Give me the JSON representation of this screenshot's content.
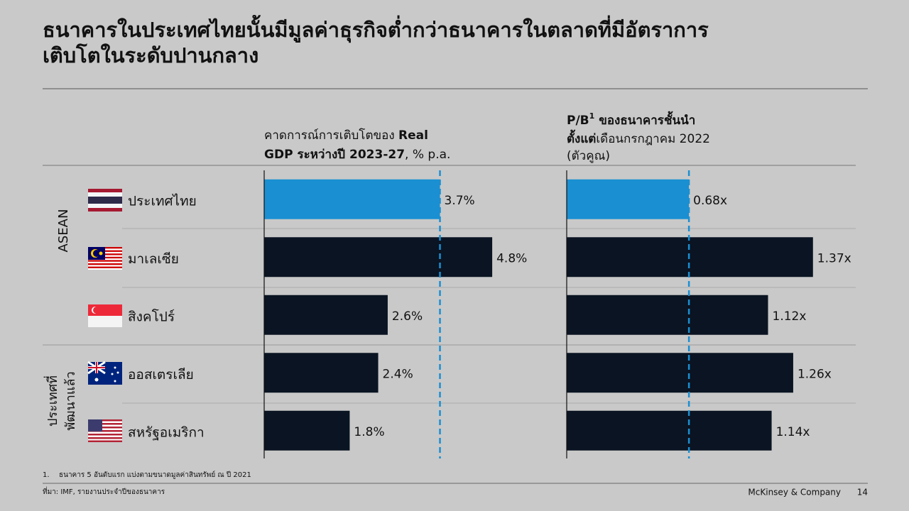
{
  "title": [
    "ธนาคารในประเทศไทยนั้นมีมูลค่าธุรกิจต่ำกว่าธนาคารในตลาดที่มีอัตราการ",
    "เติบโตในระดับปานกลาง"
  ],
  "groups": [
    [
      "ASEAN"
    ],
    [
      "ประเทศที่",
      "พัฒนาแล้ว"
    ]
  ],
  "chart_data": [
    {
      "type": "bar",
      "orientation": "horizontal",
      "title": [
        "คาดการณ์การเติบโตของ ",
        "Real",
        "GDP ระหว่างปี 2023-27",
        ", % p.a."
      ],
      "categories": [
        "ประเทศไทย",
        "มาเลเซีย",
        "สิงคโปร์",
        "ออสเตรเลีย",
        "สหรัฐอเมริกา"
      ],
      "values": [
        3.7,
        4.8,
        2.6,
        2.4,
        1.8
      ],
      "value_labels": [
        "3.7%",
        "4.8%",
        "2.6%",
        "2.4%",
        "1.8%"
      ],
      "colors": [
        "#1a8fd2",
        "#0a1422",
        "#0a1422",
        "#0a1422",
        "#0a1422"
      ],
      "xlim": [
        0,
        5.8
      ],
      "reference_line": true,
      "reference_color": "#1a8fd2"
    },
    {
      "type": "bar",
      "orientation": "horizontal",
      "title": [
        "P/B",
        "1",
        " ของธนาคารชั้นนำ",
        "ตั้งแต่",
        "เดือนกรกฎาคม 2022"
      ],
      "subtitle": "(ตัวคูณ)",
      "values": [
        0.68,
        1.37,
        1.12,
        1.26,
        1.14
      ],
      "value_labels": [
        "0.68x",
        "1.37x",
        "1.12x",
        "1.26x",
        "1.14x"
      ],
      "colors": [
        "#1a8fd2",
        "#0a1422",
        "#0a1422",
        "#0a1422",
        "#0a1422"
      ],
      "xlim": [
        0,
        1.6
      ],
      "reference_line": true,
      "reference_color": "#1a8fd2"
    }
  ],
  "footnote": [
    "1.",
    "ธนาคาร 5 อันดับแรก แบ่งตามขนาดมูลค่าสินทรัพย์ ณ ปี 2021"
  ],
  "source": "ที่มา: IMF, รายงานประจำปีของธนาคาร",
  "company": "McKinsey & Company",
  "page": "14"
}
